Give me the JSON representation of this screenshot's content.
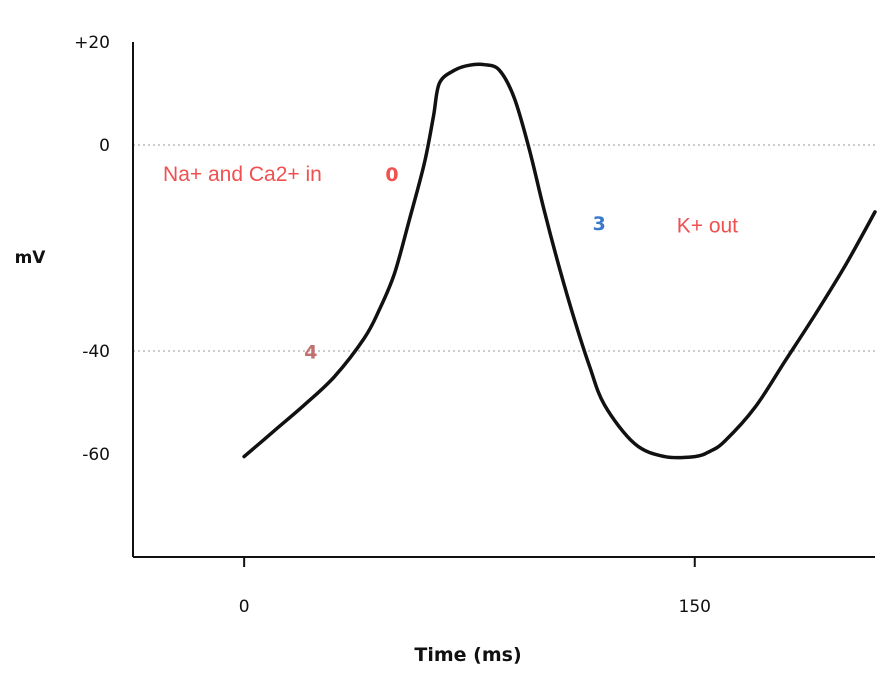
{
  "chart_data": {
    "type": "line",
    "ylabel": "mV",
    "xlabel": "Time (ms)",
    "ylim": [
      -80,
      20
    ],
    "xlim": [
      -37,
      210
    ],
    "yticks": [
      {
        "value": 20,
        "label": "+20"
      },
      {
        "value": 0,
        "label": "0"
      },
      {
        "value": -40,
        "label": "-40"
      },
      {
        "value": -60,
        "label": "-60"
      }
    ],
    "xticks": [
      {
        "value": 0,
        "label": "0"
      },
      {
        "value": 150,
        "label": "150"
      }
    ],
    "grid": "dotted horizontal lines at 0 and -40",
    "series": [
      {
        "x": [
          0,
          10,
          20,
          30,
          40,
          45,
          50,
          55,
          60,
          63,
          65,
          70,
          75,
          80,
          85,
          90,
          95,
          100,
          105,
          110,
          115,
          120,
          130,
          140,
          150,
          155,
          160,
          170,
          180,
          190,
          200,
          210
        ],
        "y": [
          -60.5,
          -55.5,
          -50.5,
          -45,
          -37.5,
          -32,
          -25,
          -14.5,
          -3.5,
          5.5,
          12,
          14.5,
          15.5,
          15.6,
          14.5,
          9,
          -1,
          -13,
          -24,
          -34,
          -43,
          -50.5,
          -58,
          -60.5,
          -60.5,
          -59.5,
          -57.5,
          -51,
          -42,
          -33,
          -23.5,
          -13
        ],
        "color": "#111111"
      }
    ],
    "annotations": [
      {
        "text": "Na+ and Ca2+ in",
        "x": -27,
        "y": -7,
        "color": "#f05050"
      },
      {
        "text": "0",
        "x": 47,
        "y": -7,
        "color": "#f05050"
      },
      {
        "text": "3",
        "x": 116,
        "y": -16.5,
        "color": "#3a78c9"
      },
      {
        "text": "K+ out",
        "x": 144,
        "y": -17,
        "color": "#f05050"
      },
      {
        "text": "4",
        "x": 20,
        "y": -41.5,
        "color": "#c0706e"
      }
    ]
  }
}
